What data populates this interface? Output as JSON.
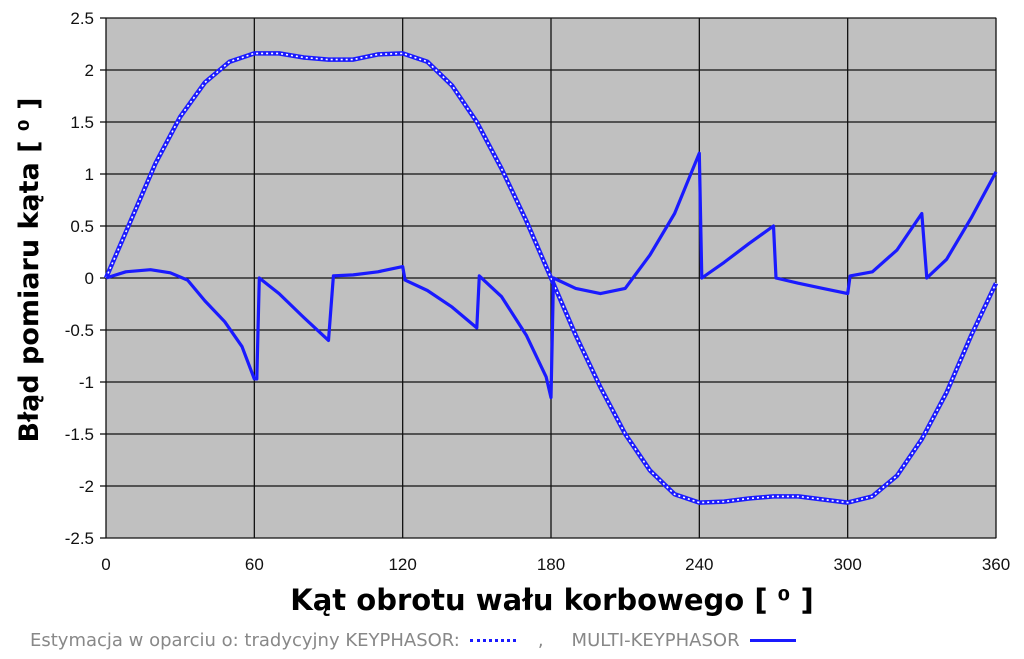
{
  "chart_data": {
    "type": "line",
    "xlabel": "Kąt obrotu wału korbowego",
    "xlabel_unit": "[ ⁰ ]",
    "ylabel": "Błąd pomiaru kąta",
    "ylabel_unit": "[ ⁰ ]",
    "xlim": [
      0,
      360
    ],
    "ylim": [
      -2.5,
      2.5
    ],
    "x_ticks": [
      "0",
      "60",
      "120",
      "180",
      "240",
      "300",
      "360"
    ],
    "y_ticks": [
      "2.5",
      "2",
      "1.5",
      "1",
      "0.5",
      "0",
      "-0.5",
      "-1",
      "-1.5",
      "-2",
      "-2.5"
    ],
    "grid": true,
    "plot_background": "#c0c0c0",
    "series_color": "#1a1aff",
    "series": [
      {
        "name": "tradycyjny KEYPHASOR",
        "style": "dotted",
        "points": [
          [
            0,
            0
          ],
          [
            10,
            0.55
          ],
          [
            20,
            1.1
          ],
          [
            30,
            1.55
          ],
          [
            40,
            1.88
          ],
          [
            50,
            2.08
          ],
          [
            60,
            2.16
          ],
          [
            70,
            2.16
          ],
          [
            80,
            2.12
          ],
          [
            90,
            2.1
          ],
          [
            100,
            2.1
          ],
          [
            110,
            2.15
          ],
          [
            120,
            2.16
          ],
          [
            130,
            2.08
          ],
          [
            140,
            1.85
          ],
          [
            150,
            1.5
          ],
          [
            160,
            1.05
          ],
          [
            170,
            0.55
          ],
          [
            180,
            0
          ],
          [
            190,
            -0.55
          ],
          [
            200,
            -1.05
          ],
          [
            210,
            -1.5
          ],
          [
            220,
            -1.85
          ],
          [
            230,
            -2.08
          ],
          [
            240,
            -2.16
          ],
          [
            250,
            -2.15
          ],
          [
            260,
            -2.12
          ],
          [
            270,
            -2.1
          ],
          [
            280,
            -2.1
          ],
          [
            290,
            -2.13
          ],
          [
            300,
            -2.16
          ],
          [
            310,
            -2.1
          ],
          [
            320,
            -1.9
          ],
          [
            330,
            -1.55
          ],
          [
            340,
            -1.1
          ],
          [
            350,
            -0.55
          ],
          [
            360,
            -0.05
          ]
        ]
      },
      {
        "name": "MULTI-KEYPHASOR",
        "style": "solid",
        "points": [
          [
            0,
            0
          ],
          [
            8,
            0.06
          ],
          [
            18,
            0.08
          ],
          [
            26,
            0.05
          ],
          [
            33,
            -0.02
          ],
          [
            40,
            -0.22
          ],
          [
            48,
            -0.42
          ],
          [
            55,
            -0.66
          ],
          [
            60,
            -0.97
          ],
          [
            61,
            -0.97
          ],
          [
            62,
            0
          ],
          [
            70,
            -0.15
          ],
          [
            80,
            -0.38
          ],
          [
            90,
            -0.6
          ],
          [
            92,
            0.02
          ],
          [
            100,
            0.03
          ],
          [
            110,
            0.06
          ],
          [
            120,
            0.11
          ],
          [
            121,
            -0.02
          ],
          [
            130,
            -0.12
          ],
          [
            140,
            -0.28
          ],
          [
            150,
            -0.48
          ],
          [
            151,
            0.02
          ],
          [
            160,
            -0.18
          ],
          [
            170,
            -0.55
          ],
          [
            178,
            -0.95
          ],
          [
            180,
            -1.15
          ],
          [
            181,
            0
          ],
          [
            190,
            -0.1
          ],
          [
            200,
            -0.15
          ],
          [
            210,
            -0.1
          ],
          [
            220,
            0.22
          ],
          [
            230,
            0.62
          ],
          [
            240,
            1.2
          ],
          [
            241,
            0
          ],
          [
            250,
            0.15
          ],
          [
            260,
            0.33
          ],
          [
            270,
            0.5
          ],
          [
            271,
            0
          ],
          [
            280,
            -0.05
          ],
          [
            290,
            -0.1
          ],
          [
            300,
            -0.15
          ],
          [
            301,
            0.02
          ],
          [
            310,
            0.06
          ],
          [
            320,
            0.27
          ],
          [
            330,
            0.62
          ],
          [
            332,
            0
          ],
          [
            340,
            0.18
          ],
          [
            350,
            0.58
          ],
          [
            360,
            1.02
          ]
        ]
      }
    ]
  },
  "legend": {
    "prefix": "Estymacja w oparciu o: tradycyjny KEYPHASOR:",
    "separator": ",",
    "multi_label": "MULTI-KEYPHASOR"
  }
}
